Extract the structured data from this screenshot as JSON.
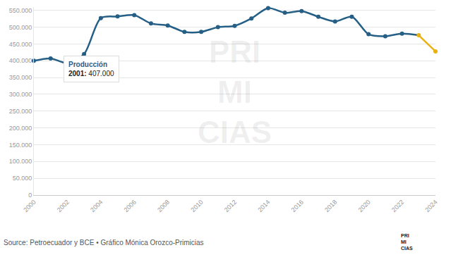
{
  "chart_data": {
    "type": "line",
    "name": "Producción",
    "x": [
      2000,
      2001,
      2002,
      2003,
      2004,
      2005,
      2006,
      2007,
      2008,
      2009,
      2010,
      2011,
      2012,
      2013,
      2014,
      2015,
      2016,
      2017,
      2018,
      2019,
      2020,
      2021,
      2022,
      2023,
      2024
    ],
    "values": [
      400000,
      407000,
      393000,
      420000,
      527000,
      532000,
      536000,
      511000,
      505000,
      486000,
      486000,
      500000,
      504000,
      526000,
      557000,
      543000,
      548000,
      531000,
      517000,
      531000,
      479000,
      473000,
      481000,
      476000,
      428000
    ],
    "colors": [
      "#255f85",
      "#255f85",
      "#255f85",
      "#255f85",
      "#255f85",
      "#255f85",
      "#255f85",
      "#255f85",
      "#255f85",
      "#255f85",
      "#255f85",
      "#255f85",
      "#255f85",
      "#255f85",
      "#255f85",
      "#255f85",
      "#255f85",
      "#255f85",
      "#255f85",
      "#255f85",
      "#255f85",
      "#255f85",
      "#255f85",
      "#e8b10e",
      "#e8b10e"
    ],
    "line_style": "spline",
    "marker": "circle",
    "xlim": [
      2000,
      2024
    ],
    "xticks": [
      2000,
      2002,
      2004,
      2006,
      2008,
      2010,
      2012,
      2014,
      2016,
      2018,
      2020,
      2022,
      2024
    ],
    "ylim": [
      0,
      560000
    ],
    "yticks": [
      0,
      {
        "value": 50000,
        "label": "50.000"
      },
      {
        "value": 100000,
        "label": "100.000"
      },
      {
        "value": 150000,
        "label": "150.000"
      },
      {
        "value": 200000,
        "label": "200.000"
      },
      {
        "value": 250000,
        "label": "250.000"
      },
      {
        "value": 300000,
        "label": "300.000"
      },
      {
        "value": 350000,
        "label": "350.000"
      },
      {
        "value": 400000,
        "label": "400.000"
      },
      {
        "value": 450000,
        "label": "450.000"
      },
      {
        "value": 500000,
        "label": "500.000"
      },
      {
        "value": 550000,
        "label": "550.000"
      }
    ],
    "grid": true,
    "tooltip": {
      "x": 2001,
      "label": "2001: 407.000"
    },
    "source": "Source: Petroecuador y BCE • Gráfico Mónica Orozco-Primicias",
    "watermark": [
      "PRI",
      "MI",
      "CIAS"
    ],
    "logo": [
      "PRI",
      "MI",
      "CIAS"
    ]
  }
}
